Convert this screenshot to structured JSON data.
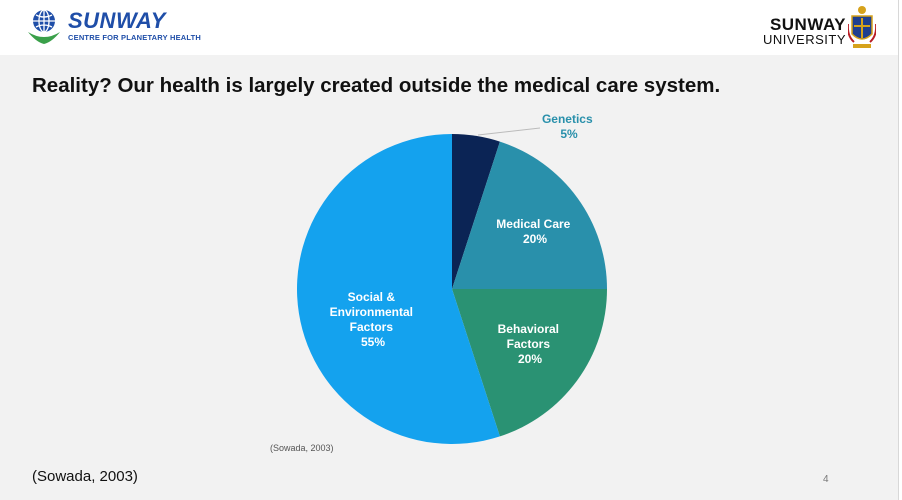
{
  "header": {
    "left_logo": {
      "brand": "SUNWAY",
      "subtitle": "CENTRE FOR PLANETARY HEALTH"
    },
    "right_logo": {
      "brand": "SUNWAY",
      "subtitle": "UNIVERSITY"
    }
  },
  "slide": {
    "title": "Reality? Our health is largely created outside the medical care system.",
    "chart_citation": "(Sowada, 2003)",
    "citation": "(Sowada, 2003)",
    "page_number": "4"
  },
  "colors": {
    "genetics": "#0b2455",
    "medical_care": "#2990ab",
    "behavioral": "#2a9273",
    "social": "#14a2ee",
    "logo_blue": "#1f4ea8",
    "logo_green": "#3aa04a"
  },
  "chart_data": {
    "type": "pie",
    "title": "",
    "slices": [
      {
        "label": "Genetics",
        "value": 5,
        "value_label": "5%"
      },
      {
        "label": "Medical Care",
        "value": 20,
        "value_label": "20%"
      },
      {
        "label": "Behavioral Factors",
        "value": 20,
        "value_label": "20%"
      },
      {
        "label": "Social & Environmental Factors",
        "value": 55,
        "value_label": "55%"
      }
    ]
  }
}
